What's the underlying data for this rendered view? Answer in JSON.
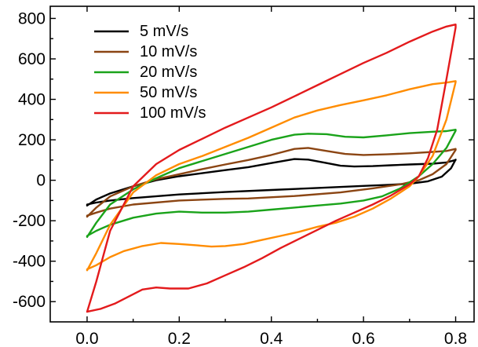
{
  "chart_data": {
    "type": "line",
    "title": "",
    "xlabel": "",
    "ylabel": "",
    "xlim": [
      -0.08,
      0.84
    ],
    "ylim": [
      -700,
      860
    ],
    "x_ticks": [
      0.0,
      0.2,
      0.4,
      0.6,
      0.8
    ],
    "x_tick_labels": [
      "0.0",
      "0.2",
      "0.4",
      "0.6",
      "0.8"
    ],
    "y_ticks": [
      -600,
      -400,
      -200,
      0,
      200,
      400,
      600,
      800
    ],
    "y_tick_labels": [
      "-600",
      "-400",
      "-200",
      "0",
      "200",
      "400",
      "600",
      "800"
    ],
    "grid": false,
    "legend_position": "top-left",
    "series": [
      {
        "name": "5 mV/s",
        "color": "#000000",
        "x": [
          0.0,
          0.02,
          0.05,
          0.1,
          0.15,
          0.2,
          0.25,
          0.3,
          0.35,
          0.4,
          0.45,
          0.48,
          0.52,
          0.55,
          0.58,
          0.62,
          0.66,
          0.7,
          0.75,
          0.78,
          0.8,
          0.8,
          0.79,
          0.77,
          0.74,
          0.7,
          0.66,
          0.6,
          0.5,
          0.4,
          0.3,
          0.2,
          0.1,
          0.05,
          0.02,
          0.0
        ],
        "y": [
          -125,
          -95,
          -65,
          -30,
          0,
          20,
          35,
          50,
          65,
          85,
          105,
          102,
          85,
          72,
          68,
          70,
          74,
          78,
          82,
          88,
          100,
          102,
          60,
          18,
          -5,
          -17,
          -22,
          -28,
          -38,
          -48,
          -58,
          -70,
          -88,
          -100,
          -110,
          -120
        ]
      },
      {
        "name": "10 mV/s",
        "color": "#8b4513",
        "x": [
          0.0,
          0.02,
          0.05,
          0.1,
          0.15,
          0.2,
          0.25,
          0.3,
          0.35,
          0.4,
          0.45,
          0.48,
          0.52,
          0.56,
          0.6,
          0.65,
          0.7,
          0.75,
          0.78,
          0.8,
          0.8,
          0.78,
          0.75,
          0.72,
          0.68,
          0.62,
          0.55,
          0.45,
          0.35,
          0.3,
          0.2,
          0.1,
          0.05,
          0.02,
          0.0
        ],
        "y": [
          -180,
          -135,
          -80,
          -30,
          5,
          30,
          55,
          78,
          100,
          125,
          155,
          160,
          145,
          130,
          125,
          128,
          133,
          140,
          145,
          155,
          150,
          80,
          30,
          0,
          -20,
          -40,
          -60,
          -78,
          -90,
          -92,
          -100,
          -120,
          -140,
          -160,
          -175
        ]
      },
      {
        "name": "20 mV/s",
        "color": "#1aa31a",
        "x": [
          0.0,
          0.02,
          0.05,
          0.1,
          0.15,
          0.2,
          0.25,
          0.3,
          0.35,
          0.4,
          0.45,
          0.48,
          0.52,
          0.56,
          0.6,
          0.65,
          0.7,
          0.75,
          0.78,
          0.8,
          0.8,
          0.78,
          0.75,
          0.72,
          0.68,
          0.64,
          0.6,
          0.55,
          0.5,
          0.45,
          0.4,
          0.35,
          0.3,
          0.25,
          0.2,
          0.15,
          0.1,
          0.05,
          0.02,
          0.0
        ],
        "y": [
          -280,
          -210,
          -120,
          -45,
          10,
          60,
          95,
          130,
          165,
          200,
          225,
          230,
          228,
          215,
          212,
          222,
          233,
          240,
          243,
          250,
          245,
          160,
          80,
          20,
          -40,
          -80,
          -100,
          -115,
          -125,
          -135,
          -145,
          -155,
          -160,
          -160,
          -155,
          -165,
          -185,
          -220,
          -250,
          -275
        ]
      },
      {
        "name": "50 mV/s",
        "color": "#ff8c00",
        "x": [
          0.0,
          0.02,
          0.05,
          0.1,
          0.15,
          0.2,
          0.25,
          0.3,
          0.35,
          0.4,
          0.45,
          0.5,
          0.55,
          0.6,
          0.65,
          0.7,
          0.75,
          0.78,
          0.8,
          0.8,
          0.78,
          0.75,
          0.72,
          0.7,
          0.66,
          0.62,
          0.58,
          0.54,
          0.5,
          0.46,
          0.42,
          0.38,
          0.34,
          0.3,
          0.27,
          0.24,
          0.2,
          0.16,
          0.12,
          0.08,
          0.05,
          0.02,
          0.0
        ],
        "y": [
          -445,
          -360,
          -220,
          -60,
          25,
          80,
          120,
          165,
          210,
          260,
          310,
          345,
          372,
          395,
          420,
          450,
          475,
          483,
          490,
          485,
          300,
          120,
          20,
          -30,
          -90,
          -140,
          -180,
          -210,
          -230,
          -255,
          -275,
          -295,
          -315,
          -325,
          -328,
          -322,
          -315,
          -310,
          -325,
          -350,
          -380,
          -420,
          -440
        ]
      },
      {
        "name": "100 mV/s",
        "color": "#e31a1c",
        "x": [
          0.0,
          0.02,
          0.05,
          0.1,
          0.15,
          0.2,
          0.25,
          0.3,
          0.35,
          0.4,
          0.45,
          0.5,
          0.55,
          0.6,
          0.65,
          0.7,
          0.75,
          0.78,
          0.8,
          0.8,
          0.78,
          0.76,
          0.74,
          0.72,
          0.7,
          0.66,
          0.62,
          0.58,
          0.54,
          0.5,
          0.46,
          0.42,
          0.38,
          0.34,
          0.3,
          0.26,
          0.22,
          0.18,
          0.15,
          0.12,
          0.09,
          0.06,
          0.03,
          0.0
        ],
        "y": [
          -650,
          -500,
          -250,
          -30,
          80,
          150,
          205,
          260,
          310,
          360,
          415,
          470,
          525,
          580,
          630,
          685,
          735,
          760,
          770,
          755,
          500,
          250,
          110,
          20,
          -20,
          -75,
          -120,
          -160,
          -200,
          -245,
          -290,
          -335,
          -385,
          -430,
          -470,
          -510,
          -535,
          -535,
          -530,
          -540,
          -575,
          -610,
          -635,
          -650
        ]
      }
    ]
  }
}
